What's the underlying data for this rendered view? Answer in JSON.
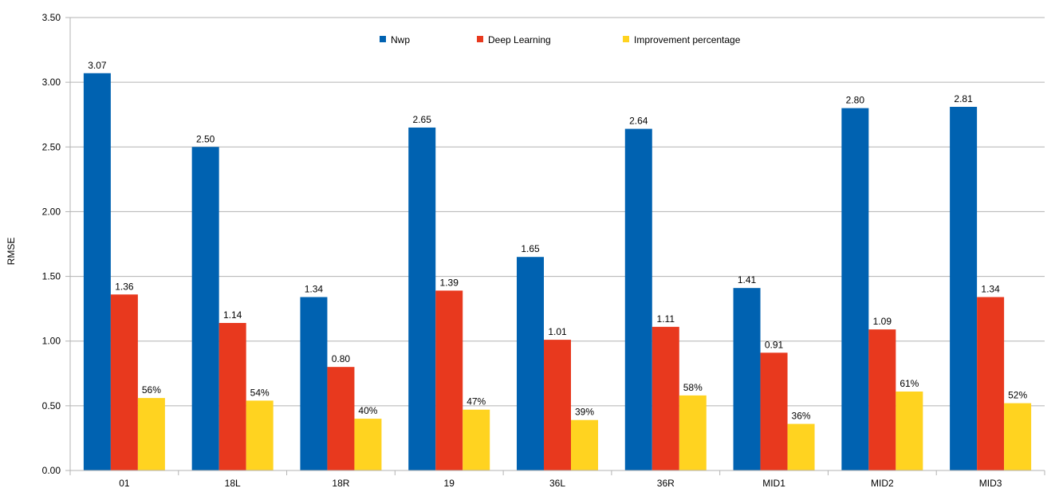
{
  "chart_data": {
    "type": "bar",
    "title": "",
    "xlabel": "",
    "ylabel": "RMSE",
    "ylim": [
      0,
      3.5
    ],
    "ytick_step": 0.5,
    "ytick_labels": [
      "0.00",
      "0.50",
      "1.00",
      "1.50",
      "2.00",
      "2.50",
      "3.00",
      "3.50"
    ],
    "grid": true,
    "legend_position": "top-center",
    "categories": [
      "01",
      "18L",
      "18R",
      "19",
      "36L",
      "36R",
      "MID1",
      "MID2",
      "MID3"
    ],
    "series": [
      {
        "name": "Nwp",
        "color": "#0062b1",
        "values": [
          3.07,
          2.5,
          1.34,
          2.65,
          1.65,
          2.64,
          1.41,
          2.8,
          2.81
        ],
        "labels": [
          "3.07",
          "2.50",
          "1.34",
          "2.65",
          "1.65",
          "2.64",
          "1.41",
          "2.80",
          "2.81"
        ]
      },
      {
        "name": "Deep Learning",
        "color": "#e8391e",
        "values": [
          1.36,
          1.14,
          0.8,
          1.39,
          1.01,
          1.11,
          0.91,
          1.09,
          1.34
        ],
        "labels": [
          "1.36",
          "1.14",
          "0.80",
          "1.39",
          "1.01",
          "1.11",
          "0.91",
          "1.09",
          "1.34"
        ]
      },
      {
        "name": "Improvement percentage",
        "color": "#ffd320",
        "values": [
          0.56,
          0.54,
          0.4,
          0.47,
          0.39,
          0.58,
          0.36,
          0.61,
          0.52
        ],
        "labels": [
          "56%",
          "54%",
          "40%",
          "47%",
          "39%",
          "58%",
          "36%",
          "61%",
          "52%"
        ]
      }
    ]
  }
}
